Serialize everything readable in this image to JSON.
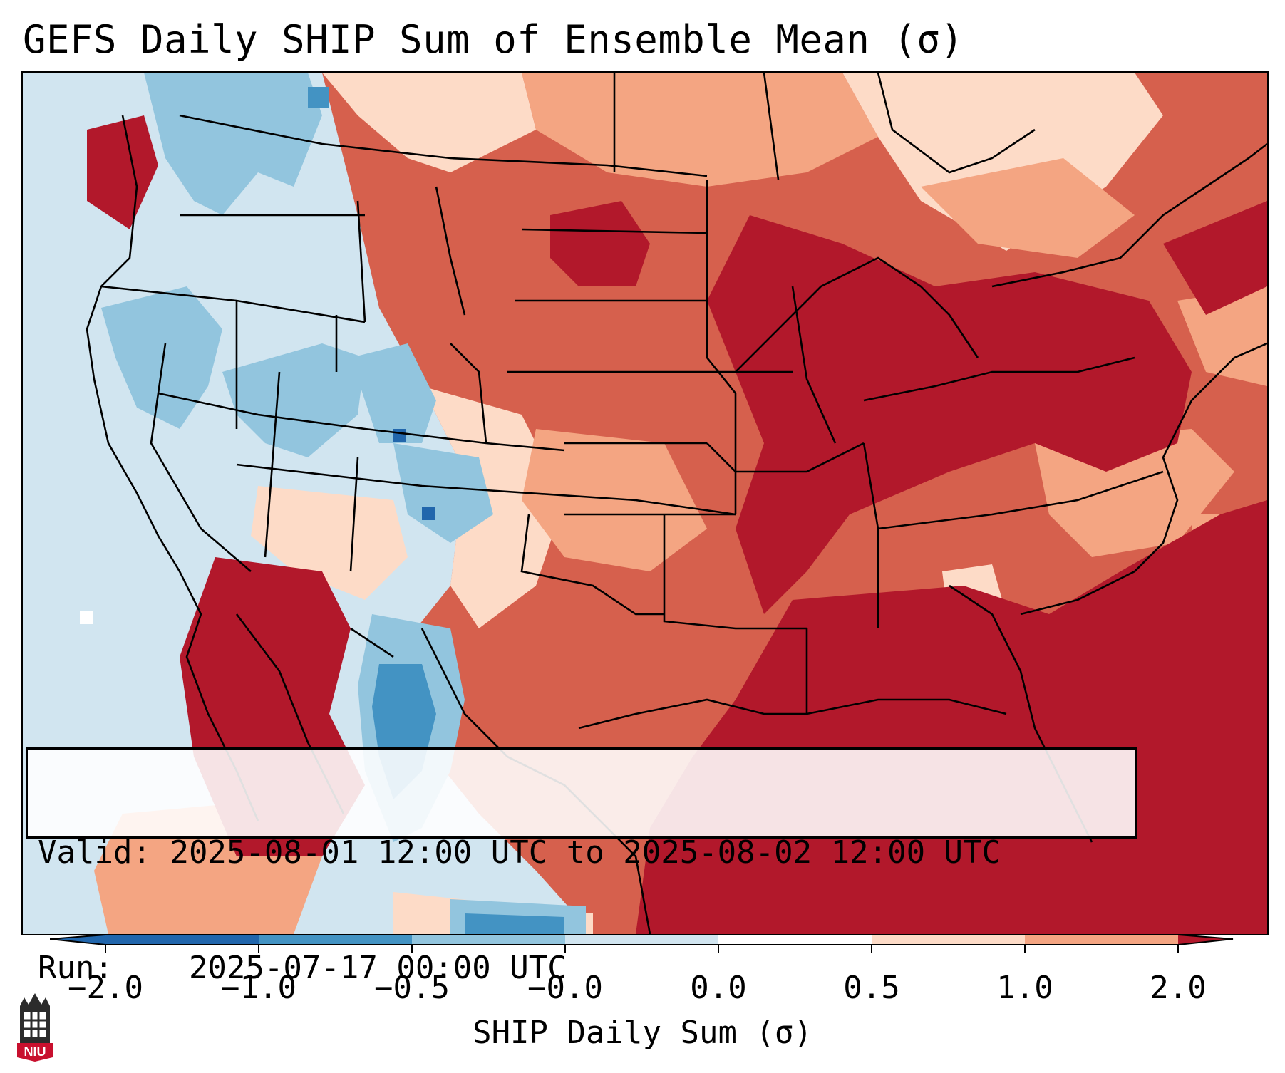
{
  "title": "GEFS Daily SHIP Sum of Ensemble Mean (σ)",
  "info_box": {
    "valid_label": "Valid:",
    "valid_value": "2025-08-01 12:00 UTC to 2025-08-02 12:00 UTC",
    "run_label": "Run:",
    "run_value": "2025-07-17 00:00 UTC"
  },
  "colorbar": {
    "label": "SHIP Daily Sum (σ)",
    "ticks": [
      "−2.0",
      "−1.0",
      "−0.5",
      "−0.0",
      "0.0",
      "0.5",
      "1.0",
      "2.0"
    ],
    "colors": [
      "#2166ac",
      "#4393c3",
      "#92c5de",
      "#d1e5f0",
      "#ffffff",
      "#fddbc7",
      "#f4a582",
      "#d6604d",
      "#b2182b"
    ],
    "extend": "both"
  },
  "map": {
    "region": "Contiguous United States",
    "field": "SHIP daily sum anomaly"
  },
  "logo": {
    "text": "NIU",
    "icon": "university-tower-icon"
  }
}
